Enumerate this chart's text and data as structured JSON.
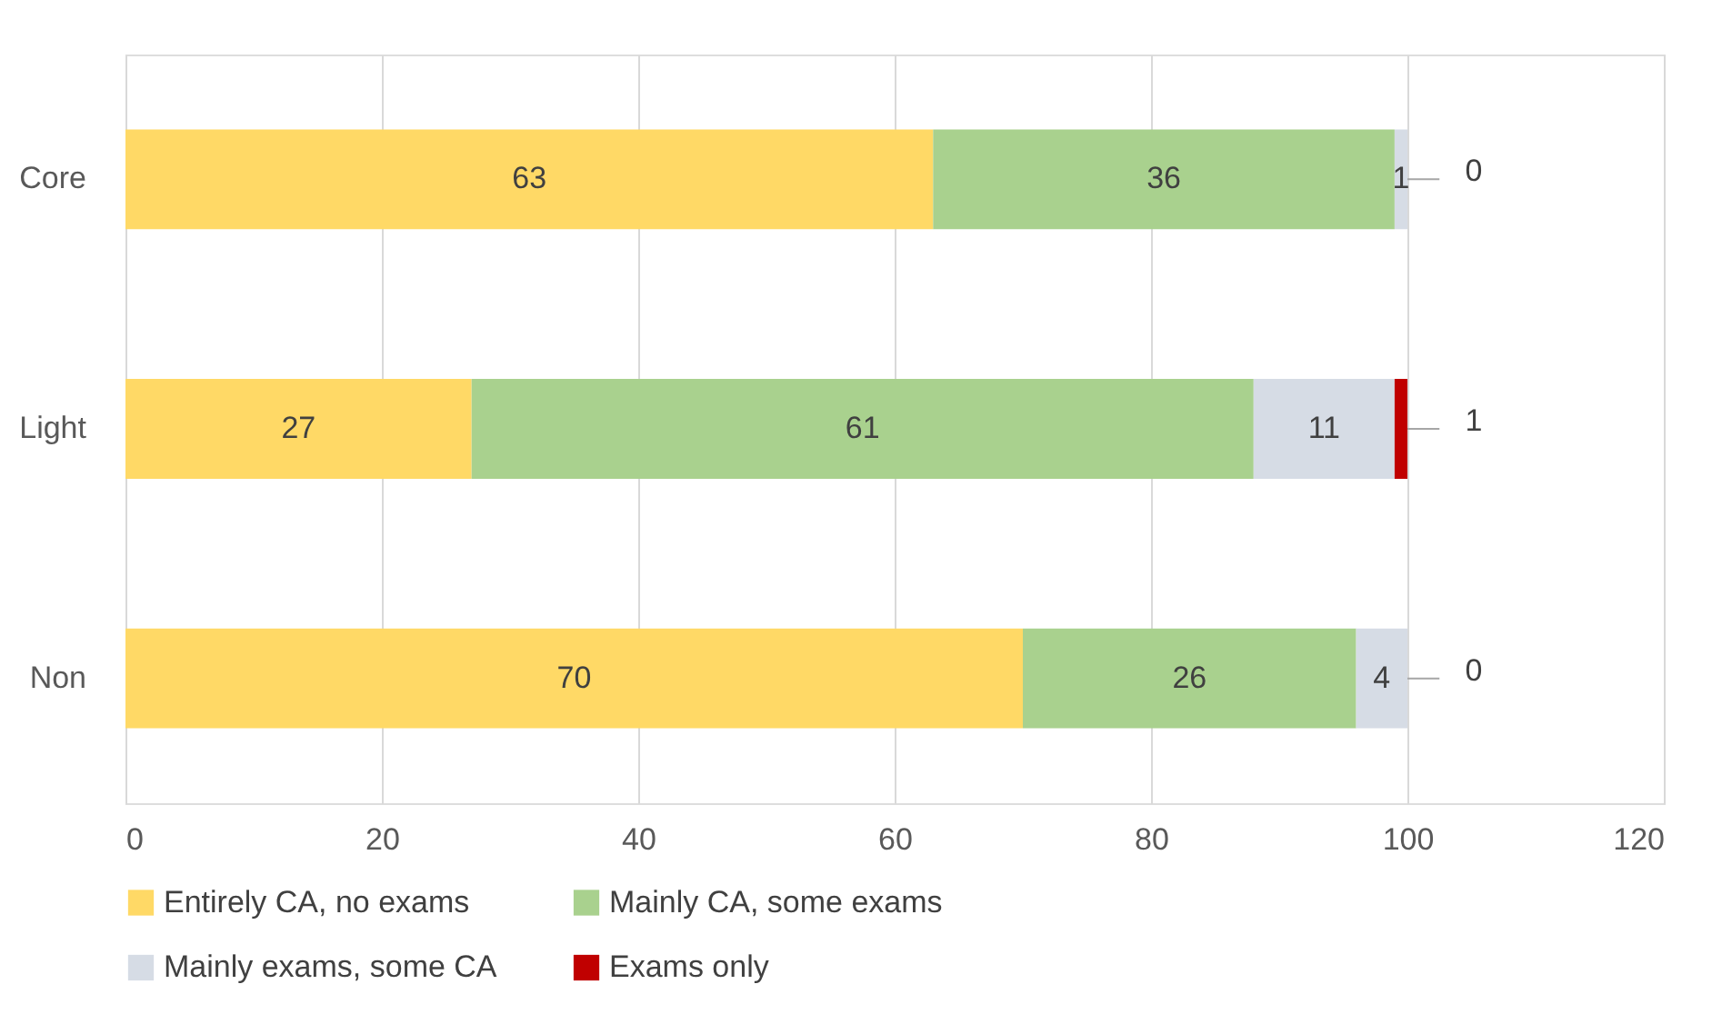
{
  "chart_data": {
    "type": "bar",
    "orientation": "horizontal",
    "stacked": true,
    "categories": [
      "Core",
      "Light",
      "Non"
    ],
    "series": [
      {
        "name": "Entirely CA, no exams",
        "color": "#ffd966",
        "values": [
          63,
          27,
          70
        ]
      },
      {
        "name": "Mainly CA, some exams",
        "color": "#a9d18e",
        "values": [
          36,
          61,
          26
        ]
      },
      {
        "name": "Mainly exams, some CA",
        "color": "#d6dce5",
        "values": [
          1,
          11,
          4
        ]
      },
      {
        "name": "Exams only",
        "color": "#c00000",
        "values": [
          0,
          1,
          0
        ]
      }
    ],
    "xlim": [
      0,
      120
    ],
    "xticks": [
      0,
      20,
      40,
      60,
      80,
      100,
      120
    ],
    "grid": "x",
    "legend": "bottom",
    "data_labels": true
  }
}
